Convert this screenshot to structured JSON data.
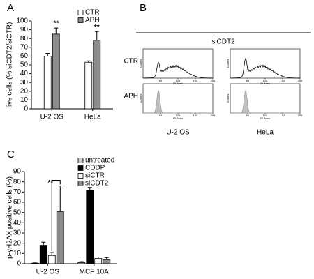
{
  "chart_data": [
    {
      "type": "bar",
      "panel": "A",
      "ylabel": "live cells (% siCDT2/siCTR)",
      "categories": [
        "U-2 OS",
        "HeLa"
      ],
      "series": [
        {
          "name": "CTR",
          "color": "#ffffff",
          "values": [
            60,
            53
          ],
          "errors": [
            3,
            1.5
          ]
        },
        {
          "name": "APH",
          "color": "#8c8c8c",
          "values": [
            85,
            78
          ],
          "errors": [
            7,
            10
          ],
          "significance": [
            "**",
            "**"
          ]
        }
      ],
      "ylim": [
        0,
        100
      ],
      "yticks": [
        0,
        10,
        20,
        30,
        40,
        50,
        60,
        70,
        80,
        90,
        100
      ]
    },
    {
      "type": "flow",
      "panel": "B",
      "title": "siCDT2",
      "rows": [
        "CTR",
        "APH"
      ],
      "columns": [
        "U-2 OS",
        "HeLa"
      ],
      "xticks": [
        64,
        128,
        192,
        256
      ],
      "xlabel": "PI-Area",
      "ylabel": "Counts"
    },
    {
      "type": "bar",
      "panel": "C",
      "ylabel": "p-γH2AX positive cells (%)",
      "categories": [
        "U-2 OS",
        "MCF 10A"
      ],
      "series": [
        {
          "name": "untreated",
          "color": "#c8c8c8",
          "values": [
            0.5,
            1
          ],
          "errors": [
            0.3,
            1
          ]
        },
        {
          "name": "CDDP",
          "color": "#000000",
          "values": [
            18,
            72
          ],
          "errors": [
            3,
            2.5
          ]
        },
        {
          "name": "siCTR",
          "color": "#ffffff",
          "values": [
            8,
            5
          ],
          "errors": [
            3,
            1.5
          ]
        },
        {
          "name": "siCDT2",
          "color": "#8c8c8c",
          "values": [
            51,
            4
          ],
          "errors": [
            25,
            2
          ],
          "significance": [
            "**",
            null
          ]
        }
      ],
      "ylim": [
        0,
        90
      ],
      "yticks": [
        0,
        10,
        20,
        30,
        40,
        50,
        60,
        70,
        80,
        90
      ]
    }
  ]
}
